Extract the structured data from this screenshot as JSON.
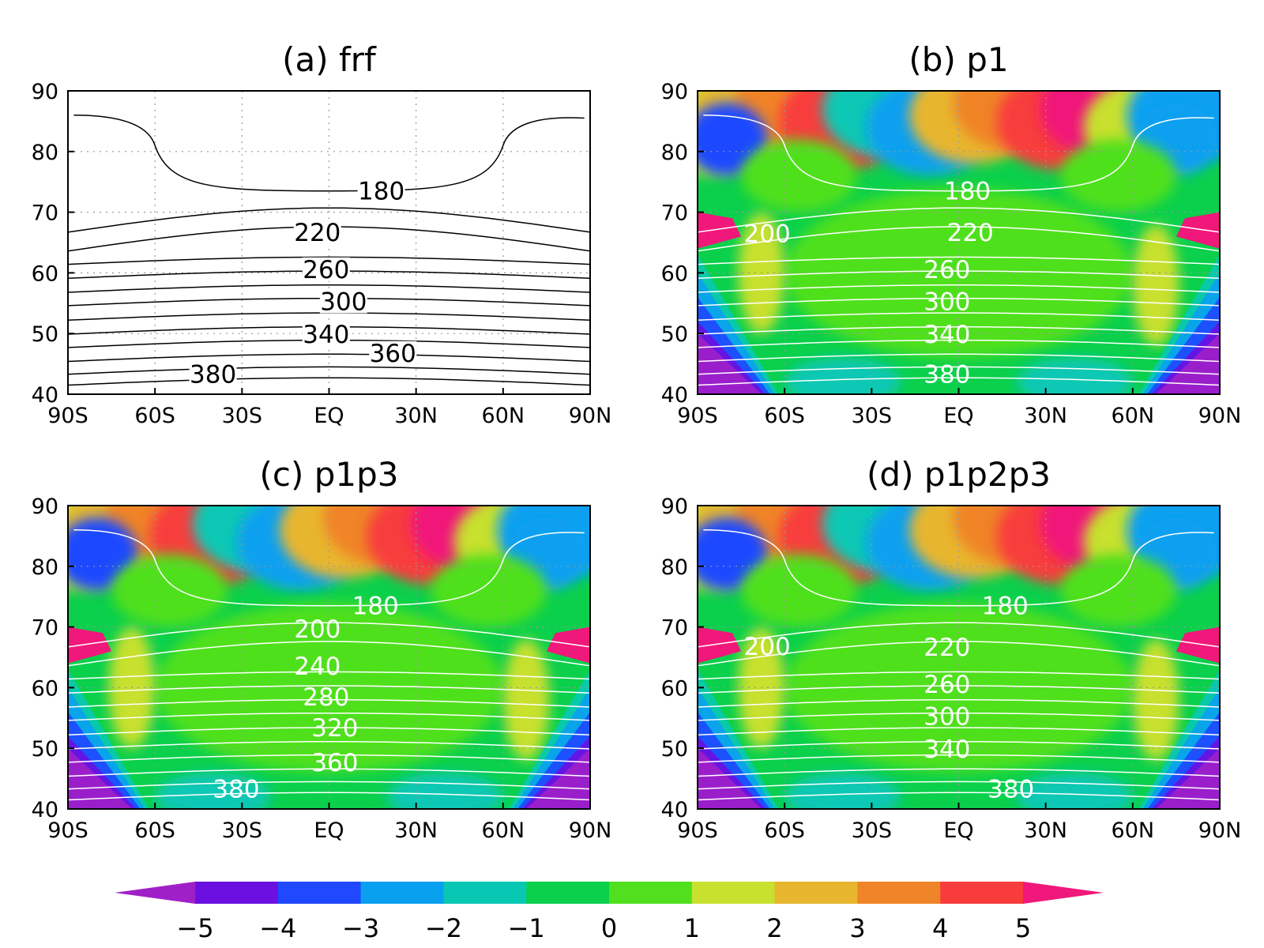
{
  "chart_data": [
    {
      "type": "contour",
      "title": "(a) frf",
      "shaded": false,
      "x_ticks": [
        "90S",
        "60S",
        "30S",
        "EQ",
        "30N",
        "60N",
        "90N"
      ],
      "y_ticks": [
        "90",
        "80",
        "70",
        "60",
        "50",
        "40"
      ],
      "xlim": [
        -90,
        90
      ],
      "ylim": [
        40,
        90
      ],
      "grid": true,
      "contour_labels": [
        {
          "label": "180",
          "x": 18,
          "y": 73.5
        },
        {
          "label": "220",
          "x": -4,
          "y": 66.7
        },
        {
          "label": "260",
          "x": -1,
          "y": 60.6
        },
        {
          "label": "300",
          "x": 5,
          "y": 55.3
        },
        {
          "label": "340",
          "x": -1,
          "y": 49.9
        },
        {
          "label": "360",
          "x": 22,
          "y": 46.8
        },
        {
          "label": "380",
          "x": -40,
          "y": 43.3
        }
      ]
    },
    {
      "type": "contour",
      "title": "(b) p1",
      "shaded": true,
      "x_ticks": [
        "90S",
        "60S",
        "30S",
        "EQ",
        "30N",
        "60N",
        "90N"
      ],
      "y_ticks": [
        "90",
        "80",
        "70",
        "60",
        "50",
        "40"
      ],
      "xlim": [
        -90,
        90
      ],
      "ylim": [
        40,
        90
      ],
      "grid": true,
      "contour_labels": [
        {
          "label": "180",
          "x": 3,
          "y": 73.5
        },
        {
          "label": "200",
          "x": -66,
          "y": 66.5
        },
        {
          "label": "220",
          "x": 4,
          "y": 66.7
        },
        {
          "label": "260",
          "x": -4,
          "y": 60.6
        },
        {
          "label": "300",
          "x": -4,
          "y": 55.3
        },
        {
          "label": "340",
          "x": -4,
          "y": 49.9
        },
        {
          "label": "380",
          "x": -4,
          "y": 43.3
        }
      ]
    },
    {
      "type": "contour",
      "title": "(c) p1p3",
      "shaded": true,
      "x_ticks": [
        "90S",
        "60S",
        "30S",
        "EQ",
        "30N",
        "60N",
        "90N"
      ],
      "y_ticks": [
        "90",
        "80",
        "70",
        "60",
        "50",
        "40"
      ],
      "xlim": [
        -90,
        90
      ],
      "ylim": [
        40,
        90
      ],
      "grid": true,
      "contour_labels": [
        {
          "label": "180",
          "x": 16,
          "y": 73.5
        },
        {
          "label": "200",
          "x": -4,
          "y": 69.7
        },
        {
          "label": "240",
          "x": -4,
          "y": 63.6
        },
        {
          "label": "280",
          "x": -1,
          "y": 58.5
        },
        {
          "label": "320",
          "x": 2,
          "y": 53.4
        },
        {
          "label": "360",
          "x": 2,
          "y": 47.7
        },
        {
          "label": "380",
          "x": -32,
          "y": 43.3
        }
      ]
    },
    {
      "type": "contour",
      "title": "(d) p1p2p3",
      "shaded": true,
      "x_ticks": [
        "90S",
        "60S",
        "30S",
        "EQ",
        "30N",
        "60N",
        "90N"
      ],
      "y_ticks": [
        "90",
        "80",
        "70",
        "60",
        "50",
        "40"
      ],
      "xlim": [
        -90,
        90
      ],
      "ylim": [
        40,
        90
      ],
      "grid": true,
      "contour_labels": [
        {
          "label": "180",
          "x": 16,
          "y": 73.5
        },
        {
          "label": "200",
          "x": -66,
          "y": 66.8
        },
        {
          "label": "220",
          "x": -4,
          "y": 66.7
        },
        {
          "label": "260",
          "x": -4,
          "y": 60.6
        },
        {
          "label": "300",
          "x": -4,
          "y": 55.3
        },
        {
          "label": "340",
          "x": -4,
          "y": 49.9
        },
        {
          "label": "380",
          "x": 18,
          "y": 43.3
        }
      ]
    }
  ],
  "colorbar": {
    "tick_labels": [
      "−5",
      "−4",
      "−3",
      "−2",
      "−1",
      "0",
      "1",
      "2",
      "3",
      "4",
      "5"
    ],
    "colors": [
      "#a020c8",
      "#6b10e0",
      "#1f48ff",
      "#0aa0f0",
      "#08c8b4",
      "#0ad04c",
      "#50e01e",
      "#c8e02e",
      "#e8b62e",
      "#f08428",
      "#f83c3c",
      "#f0187a"
    ]
  }
}
